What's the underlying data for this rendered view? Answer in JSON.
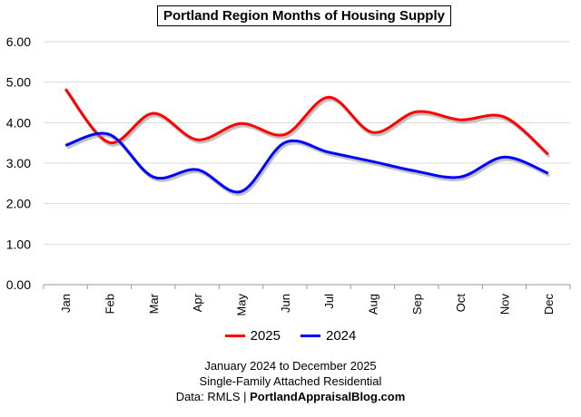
{
  "chart_data": {
    "type": "line",
    "title": "Portland Region Months of Housing Supply",
    "categories": [
      "Jan",
      "Feb",
      "Mar",
      "Apr",
      "May",
      "Jun",
      "Jul",
      "Aug",
      "Sep",
      "Oct",
      "Nov",
      "Dec"
    ],
    "ylim": [
      0,
      6
    ],
    "yticks": [
      "0.00",
      "1.00",
      "2.00",
      "3.00",
      "4.00",
      "5.00",
      "6.00"
    ],
    "grid": true,
    "smooth": true,
    "legend_position": "bottom",
    "series": [
      {
        "name": "2025",
        "color": "#ff0000",
        "values": [
          4.83,
          3.51,
          4.23,
          3.58,
          3.98,
          3.71,
          4.63,
          3.76,
          4.27,
          4.07,
          4.14,
          3.22
        ]
      },
      {
        "name": "2024",
        "color": "#0000ff",
        "values": [
          3.44,
          3.71,
          2.66,
          2.84,
          2.3,
          3.51,
          3.27,
          3.04,
          2.8,
          2.66,
          3.15,
          2.75
        ]
      }
    ]
  },
  "footer": {
    "line1": "January 2024 to December 2025",
    "line2": "Single-Family Attached Residential",
    "line3_prefix": "Data: RMLS | ",
    "line3_bold": "PortlandAppraisalBlog.com"
  }
}
